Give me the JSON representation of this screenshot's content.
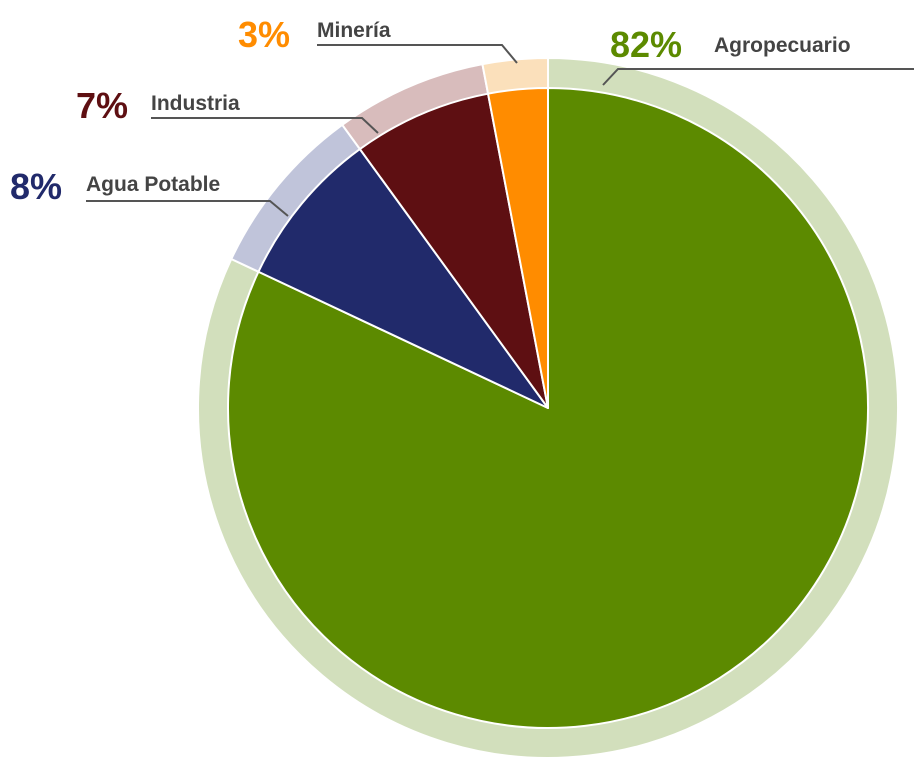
{
  "chart_data": {
    "type": "pie",
    "title": "",
    "slices": [
      {
        "key": "agro",
        "label": "Agropecuario",
        "value": 82,
        "percent_label": "82%",
        "color": "#5c8a00",
        "ring_color": "#d2dfbc"
      },
      {
        "key": "agua",
        "label": "Agua Potable",
        "value": 8,
        "percent_label": "8%",
        "color": "#212a6b",
        "ring_color": "#c0c4da"
      },
      {
        "key": "industria",
        "label": "Industria",
        "value": 7,
        "percent_label": "7%",
        "color": "#5e0f12",
        "ring_color": "#d8bcbc"
      },
      {
        "key": "mineria",
        "label": "Minería",
        "value": 3,
        "percent_label": "3%",
        "color": "#ff8c00",
        "ring_color": "#fbe0bb"
      }
    ],
    "start_angle": "12 o'clock",
    "direction": "clockwise",
    "legend": "none"
  }
}
